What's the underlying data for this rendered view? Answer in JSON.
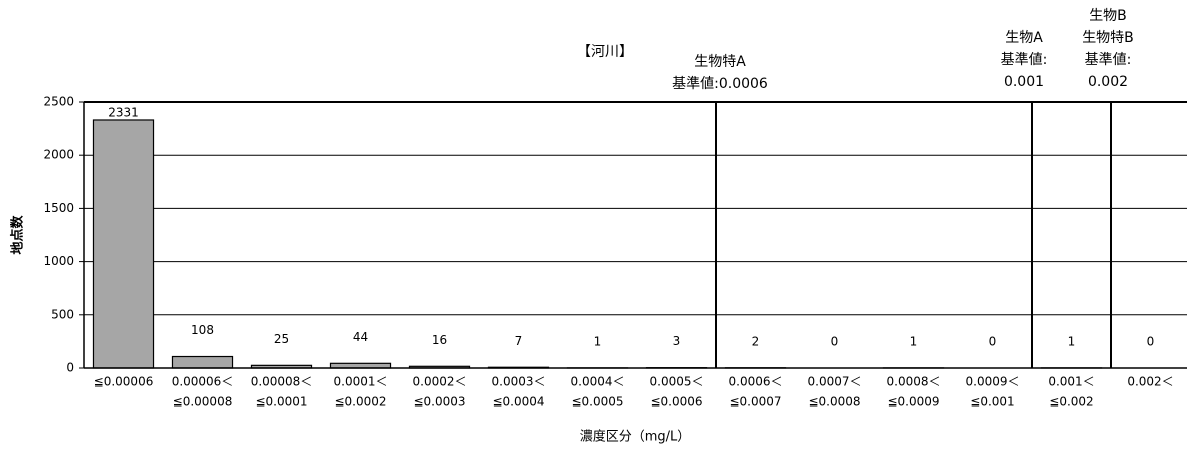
{
  "chart_data": {
    "type": "bar",
    "title": "【河川】",
    "y_label": "地点数",
    "x_label": "濃度区分（mg/L）",
    "categories": [
      [
        "≦0.00006"
      ],
      [
        "0.00006＜",
        "≦0.00008"
      ],
      [
        "0.00008＜",
        "≦0.0001"
      ],
      [
        "0.0001＜",
        "≦0.0002"
      ],
      [
        "0.0002＜",
        "≦0.0003"
      ],
      [
        "0.0003＜",
        "≦0.0004"
      ],
      [
        "0.0004＜",
        "≦0.0005"
      ],
      [
        "0.0005＜",
        "≦0.0006"
      ],
      [
        "0.0006＜",
        "≦0.0007"
      ],
      [
        "0.0007＜",
        "≦0.0008"
      ],
      [
        "0.0008＜",
        "≦0.0009"
      ],
      [
        "0.0009＜",
        "≦0.001"
      ],
      [
        "0.001＜",
        "≦0.002"
      ],
      [
        "0.002＜"
      ]
    ],
    "values": [
      2331,
      108,
      25,
      44,
      16,
      7,
      1,
      3,
      2,
      0,
      1,
      0,
      1,
      0
    ],
    "color": "#a6a6a6",
    "ylim": [
      0,
      2500
    ],
    "yticks": [
      0,
      500,
      1000,
      1500,
      2000,
      2500
    ],
    "grid": true,
    "annotations": [
      [
        "生物特A",
        "基準値:0.0006"
      ],
      [
        "生物A",
        "基準値:",
        "0.001"
      ],
      [
        "生物B",
        "生物特B",
        "基準値:",
        "0.002"
      ]
    ]
  }
}
